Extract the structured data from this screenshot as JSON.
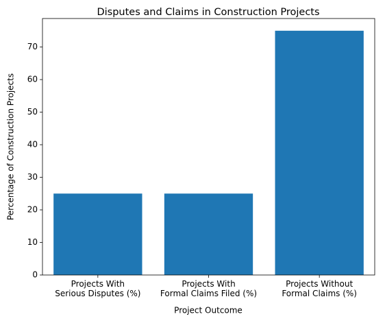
{
  "chart_data": {
    "type": "bar",
    "title": "Disputes and Claims in Construction Projects",
    "x_label": "Project Outcome",
    "y_label": "Percentage of Construction Projects",
    "categories": [
      "Projects With\nSerious Disputes (%)",
      "Projects With\nFormal Claims Filed (%)",
      "Projects Without\nFormal Claims (%)"
    ],
    "values": [
      25,
      25,
      75
    ],
    "color": "#1f77b4",
    "ylim": [
      0,
      78.75
    ],
    "yticks": [
      0,
      10,
      20,
      30,
      40,
      50,
      60,
      70
    ],
    "grid": false
  }
}
